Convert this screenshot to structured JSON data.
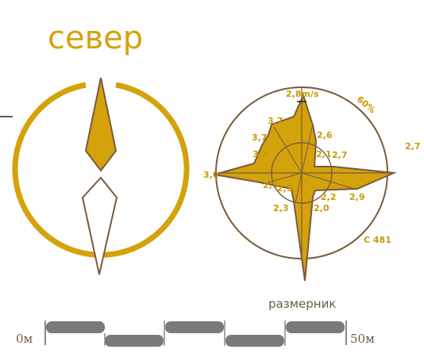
{
  "north_title": "север",
  "wind_rose": {
    "labels": [
      {
        "text": "2,8m/s",
        "name": "label-2-8-ms"
      },
      {
        "text": "60%",
        "name": "label-60-percent"
      },
      {
        "text": "3,7",
        "name": "label-3-7-upper"
      },
      {
        "text": "3,7",
        "name": "label-3-7-left"
      },
      {
        "text": "2,6",
        "name": "label-2-6"
      },
      {
        "text": "3,3",
        "name": "label-3-3"
      },
      {
        "text": "2,1",
        "name": "label-2-1"
      },
      {
        "text": "2,7",
        "name": "label-2-7-inner"
      },
      {
        "text": "2,7",
        "name": "label-2-7-outer"
      },
      {
        "text": "3,0",
        "name": "label-3-0"
      },
      {
        "text": "2,5",
        "name": "label-2-5"
      },
      {
        "text": "2,3",
        "name": "label-2-3-inner"
      },
      {
        "text": "2,2",
        "name": "label-2-2"
      },
      {
        "text": "2,9",
        "name": "label-2-9"
      },
      {
        "text": "2,3",
        "name": "label-2-3-lower"
      },
      {
        "text": "2,0",
        "name": "label-2-0"
      },
      {
        "text": "C 481",
        "name": "label-c-481"
      }
    ]
  },
  "scale_bar": {
    "caption": "размерник",
    "start": "0м",
    "end": "50м"
  },
  "colors": {
    "gold": "#d4a20a",
    "brown": "#7a5a3c",
    "bar_gray": "#7a7a7a"
  }
}
